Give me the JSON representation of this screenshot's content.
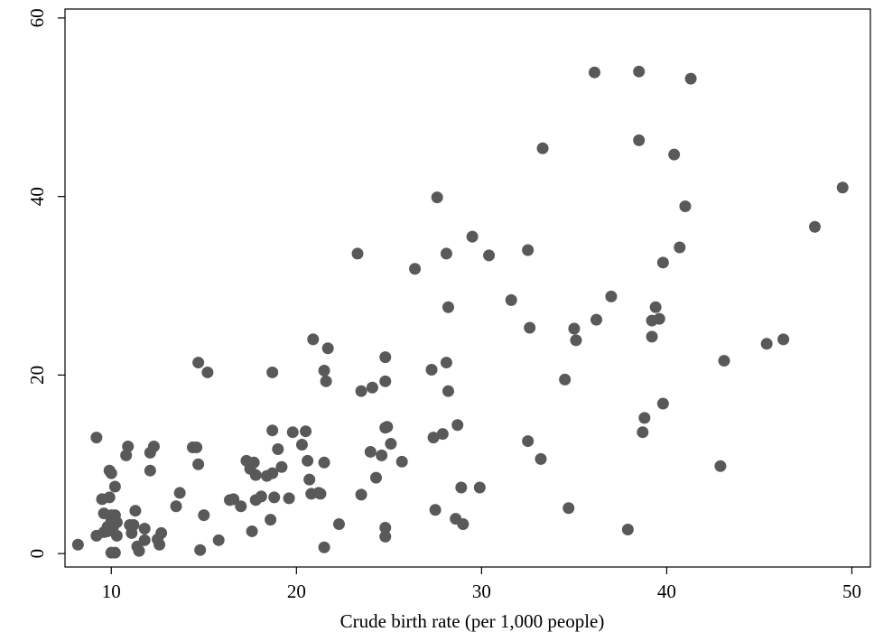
{
  "chart_data": {
    "type": "scatter",
    "title": "",
    "xlabel": "Crude birth rate (per 1,000 people)",
    "ylabel": "",
    "xlim": [
      7.5,
      51
    ],
    "ylim": [
      -1.5,
      61
    ],
    "xticks": [
      10,
      20,
      30,
      40,
      50
    ],
    "yticks": [
      0,
      20,
      40,
      60
    ],
    "grid": false,
    "legend": "none",
    "marker_color": "#595959",
    "series": [
      {
        "points": [
          [
            8.2,
            1.0
          ],
          [
            9.2,
            13.0
          ],
          [
            9.2,
            2.0
          ],
          [
            9.5,
            6.1
          ],
          [
            9.6,
            4.5
          ],
          [
            9.6,
            2.4
          ],
          [
            9.8,
            3.0
          ],
          [
            9.8,
            2.5
          ],
          [
            9.9,
            6.3
          ],
          [
            9.9,
            9.3
          ],
          [
            10.0,
            9.0
          ],
          [
            10.0,
            0.1
          ],
          [
            10.0,
            4.3
          ],
          [
            10.0,
            3.7
          ],
          [
            10.1,
            3.0
          ],
          [
            10.2,
            0.1
          ],
          [
            10.2,
            7.5
          ],
          [
            10.2,
            4.3
          ],
          [
            10.3,
            2.0
          ],
          [
            10.3,
            3.5
          ],
          [
            10.8,
            11.0
          ],
          [
            10.9,
            12.0
          ],
          [
            11.0,
            3.2
          ],
          [
            11.1,
            2.3
          ],
          [
            11.2,
            3.2
          ],
          [
            11.3,
            4.8
          ],
          [
            11.4,
            0.8
          ],
          [
            11.5,
            0.3
          ],
          [
            11.8,
            1.5
          ],
          [
            11.8,
            2.8
          ],
          [
            12.1,
            9.3
          ],
          [
            12.1,
            11.3
          ],
          [
            12.3,
            12.0
          ],
          [
            12.5,
            1.6
          ],
          [
            12.6,
            1.0
          ],
          [
            12.7,
            2.3
          ],
          [
            13.5,
            5.3
          ],
          [
            13.7,
            6.8
          ],
          [
            14.4,
            11.9
          ],
          [
            14.6,
            11.9
          ],
          [
            14.7,
            10.0
          ],
          [
            14.7,
            21.4
          ],
          [
            14.8,
            0.4
          ],
          [
            15.0,
            4.3
          ],
          [
            15.2,
            20.3
          ],
          [
            15.8,
            1.5
          ],
          [
            16.4,
            6.0
          ],
          [
            16.6,
            6.1
          ],
          [
            17.0,
            5.3
          ],
          [
            17.3,
            10.4
          ],
          [
            17.5,
            9.5
          ],
          [
            17.6,
            2.5
          ],
          [
            17.7,
            10.2
          ],
          [
            17.8,
            8.8
          ],
          [
            17.8,
            6.0
          ],
          [
            18.1,
            6.4
          ],
          [
            18.4,
            8.7
          ],
          [
            18.6,
            3.8
          ],
          [
            18.7,
            13.8
          ],
          [
            18.7,
            20.3
          ],
          [
            18.7,
            9.0
          ],
          [
            18.8,
            6.3
          ],
          [
            19.0,
            11.7
          ],
          [
            19.2,
            9.7
          ],
          [
            19.6,
            6.2
          ],
          [
            19.8,
            13.6
          ],
          [
            20.3,
            12.2
          ],
          [
            20.5,
            13.7
          ],
          [
            20.6,
            10.4
          ],
          [
            20.7,
            8.3
          ],
          [
            20.8,
            6.7
          ],
          [
            20.9,
            24.0
          ],
          [
            21.2,
            6.8
          ],
          [
            21.3,
            6.7
          ],
          [
            21.5,
            20.5
          ],
          [
            21.5,
            10.2
          ],
          [
            21.5,
            0.7
          ],
          [
            21.6,
            19.3
          ],
          [
            21.7,
            23.0
          ],
          [
            22.3,
            3.3
          ],
          [
            23.3,
            33.6
          ],
          [
            23.5,
            6.6
          ],
          [
            23.5,
            18.2
          ],
          [
            24.0,
            11.4
          ],
          [
            24.1,
            18.6
          ],
          [
            24.3,
            8.5
          ],
          [
            24.6,
            11.0
          ],
          [
            24.8,
            22.0
          ],
          [
            24.8,
            19.3
          ],
          [
            24.8,
            14.1
          ],
          [
            24.8,
            2.9
          ],
          [
            24.8,
            1.9
          ],
          [
            24.9,
            14.2
          ],
          [
            25.1,
            12.3
          ],
          [
            25.7,
            10.3
          ],
          [
            26.4,
            31.9
          ],
          [
            27.3,
            20.6
          ],
          [
            27.4,
            13.0
          ],
          [
            27.5,
            4.9
          ],
          [
            27.6,
            39.9
          ],
          [
            27.9,
            13.4
          ],
          [
            28.1,
            33.6
          ],
          [
            28.1,
            21.4
          ],
          [
            28.2,
            27.6
          ],
          [
            28.2,
            18.2
          ],
          [
            28.6,
            3.9
          ],
          [
            28.7,
            14.4
          ],
          [
            28.9,
            7.4
          ],
          [
            29.0,
            3.3
          ],
          [
            29.5,
            35.5
          ],
          [
            29.9,
            7.4
          ],
          [
            30.4,
            33.4
          ],
          [
            31.6,
            28.4
          ],
          [
            32.5,
            34.0
          ],
          [
            32.5,
            12.6
          ],
          [
            32.6,
            25.3
          ],
          [
            33.2,
            10.6
          ],
          [
            33.3,
            45.4
          ],
          [
            34.5,
            19.5
          ],
          [
            34.7,
            5.1
          ],
          [
            35.0,
            25.2
          ],
          [
            35.1,
            23.9
          ],
          [
            36.1,
            53.9
          ],
          [
            36.2,
            26.2
          ],
          [
            37.0,
            28.8
          ],
          [
            37.9,
            2.7
          ],
          [
            38.5,
            54.0
          ],
          [
            38.5,
            46.3
          ],
          [
            38.7,
            13.6
          ],
          [
            38.8,
            15.2
          ],
          [
            39.2,
            26.1
          ],
          [
            39.2,
            24.3
          ],
          [
            39.4,
            27.6
          ],
          [
            39.6,
            26.3
          ],
          [
            39.8,
            32.6
          ],
          [
            39.8,
            16.8
          ],
          [
            40.4,
            44.7
          ],
          [
            40.7,
            34.3
          ],
          [
            41.0,
            38.9
          ],
          [
            41.3,
            53.2
          ],
          [
            42.9,
            9.8
          ],
          [
            43.1,
            21.6
          ],
          [
            45.4,
            23.5
          ],
          [
            46.3,
            24.0
          ],
          [
            48.0,
            36.6
          ],
          [
            49.5,
            41.0
          ]
        ]
      }
    ]
  }
}
